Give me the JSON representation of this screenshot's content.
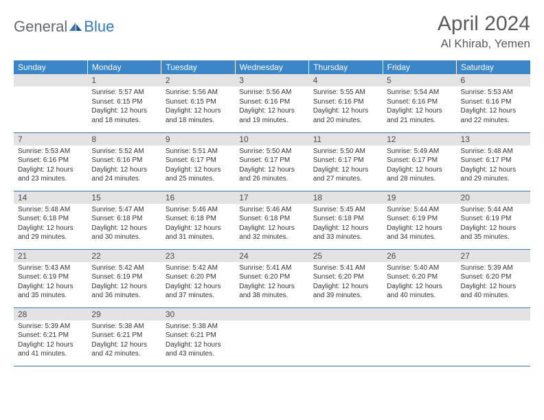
{
  "logo": {
    "general": "General",
    "blue": "Blue"
  },
  "title": "April 2024",
  "location": "Al Khirab, Yemen",
  "colors": {
    "header_bg": "#3a86c8",
    "header_text": "#ffffff",
    "daynum_bg": "#e3e3e3",
    "border": "#2f79bf",
    "text": "#333333",
    "title_text": "#5a5a5a"
  },
  "daysOfWeek": [
    "Sunday",
    "Monday",
    "Tuesday",
    "Wednesday",
    "Thursday",
    "Friday",
    "Saturday"
  ],
  "weeks": [
    [
      {
        "num": "",
        "lines": []
      },
      {
        "num": "1",
        "lines": [
          "Sunrise: 5:57 AM",
          "Sunset: 6:15 PM",
          "Daylight: 12 hours",
          "and 18 minutes."
        ]
      },
      {
        "num": "2",
        "lines": [
          "Sunrise: 5:56 AM",
          "Sunset: 6:15 PM",
          "Daylight: 12 hours",
          "and 18 minutes."
        ]
      },
      {
        "num": "3",
        "lines": [
          "Sunrise: 5:56 AM",
          "Sunset: 6:16 PM",
          "Daylight: 12 hours",
          "and 19 minutes."
        ]
      },
      {
        "num": "4",
        "lines": [
          "Sunrise: 5:55 AM",
          "Sunset: 6:16 PM",
          "Daylight: 12 hours",
          "and 20 minutes."
        ]
      },
      {
        "num": "5",
        "lines": [
          "Sunrise: 5:54 AM",
          "Sunset: 6:16 PM",
          "Daylight: 12 hours",
          "and 21 minutes."
        ]
      },
      {
        "num": "6",
        "lines": [
          "Sunrise: 5:53 AM",
          "Sunset: 6:16 PM",
          "Daylight: 12 hours",
          "and 22 minutes."
        ]
      }
    ],
    [
      {
        "num": "7",
        "lines": [
          "Sunrise: 5:53 AM",
          "Sunset: 6:16 PM",
          "Daylight: 12 hours",
          "and 23 minutes."
        ]
      },
      {
        "num": "8",
        "lines": [
          "Sunrise: 5:52 AM",
          "Sunset: 6:16 PM",
          "Daylight: 12 hours",
          "and 24 minutes."
        ]
      },
      {
        "num": "9",
        "lines": [
          "Sunrise: 5:51 AM",
          "Sunset: 6:17 PM",
          "Daylight: 12 hours",
          "and 25 minutes."
        ]
      },
      {
        "num": "10",
        "lines": [
          "Sunrise: 5:50 AM",
          "Sunset: 6:17 PM",
          "Daylight: 12 hours",
          "and 26 minutes."
        ]
      },
      {
        "num": "11",
        "lines": [
          "Sunrise: 5:50 AM",
          "Sunset: 6:17 PM",
          "Daylight: 12 hours",
          "and 27 minutes."
        ]
      },
      {
        "num": "12",
        "lines": [
          "Sunrise: 5:49 AM",
          "Sunset: 6:17 PM",
          "Daylight: 12 hours",
          "and 28 minutes."
        ]
      },
      {
        "num": "13",
        "lines": [
          "Sunrise: 5:48 AM",
          "Sunset: 6:17 PM",
          "Daylight: 12 hours",
          "and 29 minutes."
        ]
      }
    ],
    [
      {
        "num": "14",
        "lines": [
          "Sunrise: 5:48 AM",
          "Sunset: 6:18 PM",
          "Daylight: 12 hours",
          "and 29 minutes."
        ]
      },
      {
        "num": "15",
        "lines": [
          "Sunrise: 5:47 AM",
          "Sunset: 6:18 PM",
          "Daylight: 12 hours",
          "and 30 minutes."
        ]
      },
      {
        "num": "16",
        "lines": [
          "Sunrise: 5:46 AM",
          "Sunset: 6:18 PM",
          "Daylight: 12 hours",
          "and 31 minutes."
        ]
      },
      {
        "num": "17",
        "lines": [
          "Sunrise: 5:46 AM",
          "Sunset: 6:18 PM",
          "Daylight: 12 hours",
          "and 32 minutes."
        ]
      },
      {
        "num": "18",
        "lines": [
          "Sunrise: 5:45 AM",
          "Sunset: 6:18 PM",
          "Daylight: 12 hours",
          "and 33 minutes."
        ]
      },
      {
        "num": "19",
        "lines": [
          "Sunrise: 5:44 AM",
          "Sunset: 6:19 PM",
          "Daylight: 12 hours",
          "and 34 minutes."
        ]
      },
      {
        "num": "20",
        "lines": [
          "Sunrise: 5:44 AM",
          "Sunset: 6:19 PM",
          "Daylight: 12 hours",
          "and 35 minutes."
        ]
      }
    ],
    [
      {
        "num": "21",
        "lines": [
          "Sunrise: 5:43 AM",
          "Sunset: 6:19 PM",
          "Daylight: 12 hours",
          "and 35 minutes."
        ]
      },
      {
        "num": "22",
        "lines": [
          "Sunrise: 5:42 AM",
          "Sunset: 6:19 PM",
          "Daylight: 12 hours",
          "and 36 minutes."
        ]
      },
      {
        "num": "23",
        "lines": [
          "Sunrise: 5:42 AM",
          "Sunset: 6:20 PM",
          "Daylight: 12 hours",
          "and 37 minutes."
        ]
      },
      {
        "num": "24",
        "lines": [
          "Sunrise: 5:41 AM",
          "Sunset: 6:20 PM",
          "Daylight: 12 hours",
          "and 38 minutes."
        ]
      },
      {
        "num": "25",
        "lines": [
          "Sunrise: 5:41 AM",
          "Sunset: 6:20 PM",
          "Daylight: 12 hours",
          "and 39 minutes."
        ]
      },
      {
        "num": "26",
        "lines": [
          "Sunrise: 5:40 AM",
          "Sunset: 6:20 PM",
          "Daylight: 12 hours",
          "and 40 minutes."
        ]
      },
      {
        "num": "27",
        "lines": [
          "Sunrise: 5:39 AM",
          "Sunset: 6:20 PM",
          "Daylight: 12 hours",
          "and 40 minutes."
        ]
      }
    ],
    [
      {
        "num": "28",
        "lines": [
          "Sunrise: 5:39 AM",
          "Sunset: 6:21 PM",
          "Daylight: 12 hours",
          "and 41 minutes."
        ]
      },
      {
        "num": "29",
        "lines": [
          "Sunrise: 5:38 AM",
          "Sunset: 6:21 PM",
          "Daylight: 12 hours",
          "and 42 minutes."
        ]
      },
      {
        "num": "30",
        "lines": [
          "Sunrise: 5:38 AM",
          "Sunset: 6:21 PM",
          "Daylight: 12 hours",
          "and 43 minutes."
        ]
      },
      {
        "num": "",
        "lines": []
      },
      {
        "num": "",
        "lines": []
      },
      {
        "num": "",
        "lines": []
      },
      {
        "num": "",
        "lines": []
      }
    ]
  ]
}
